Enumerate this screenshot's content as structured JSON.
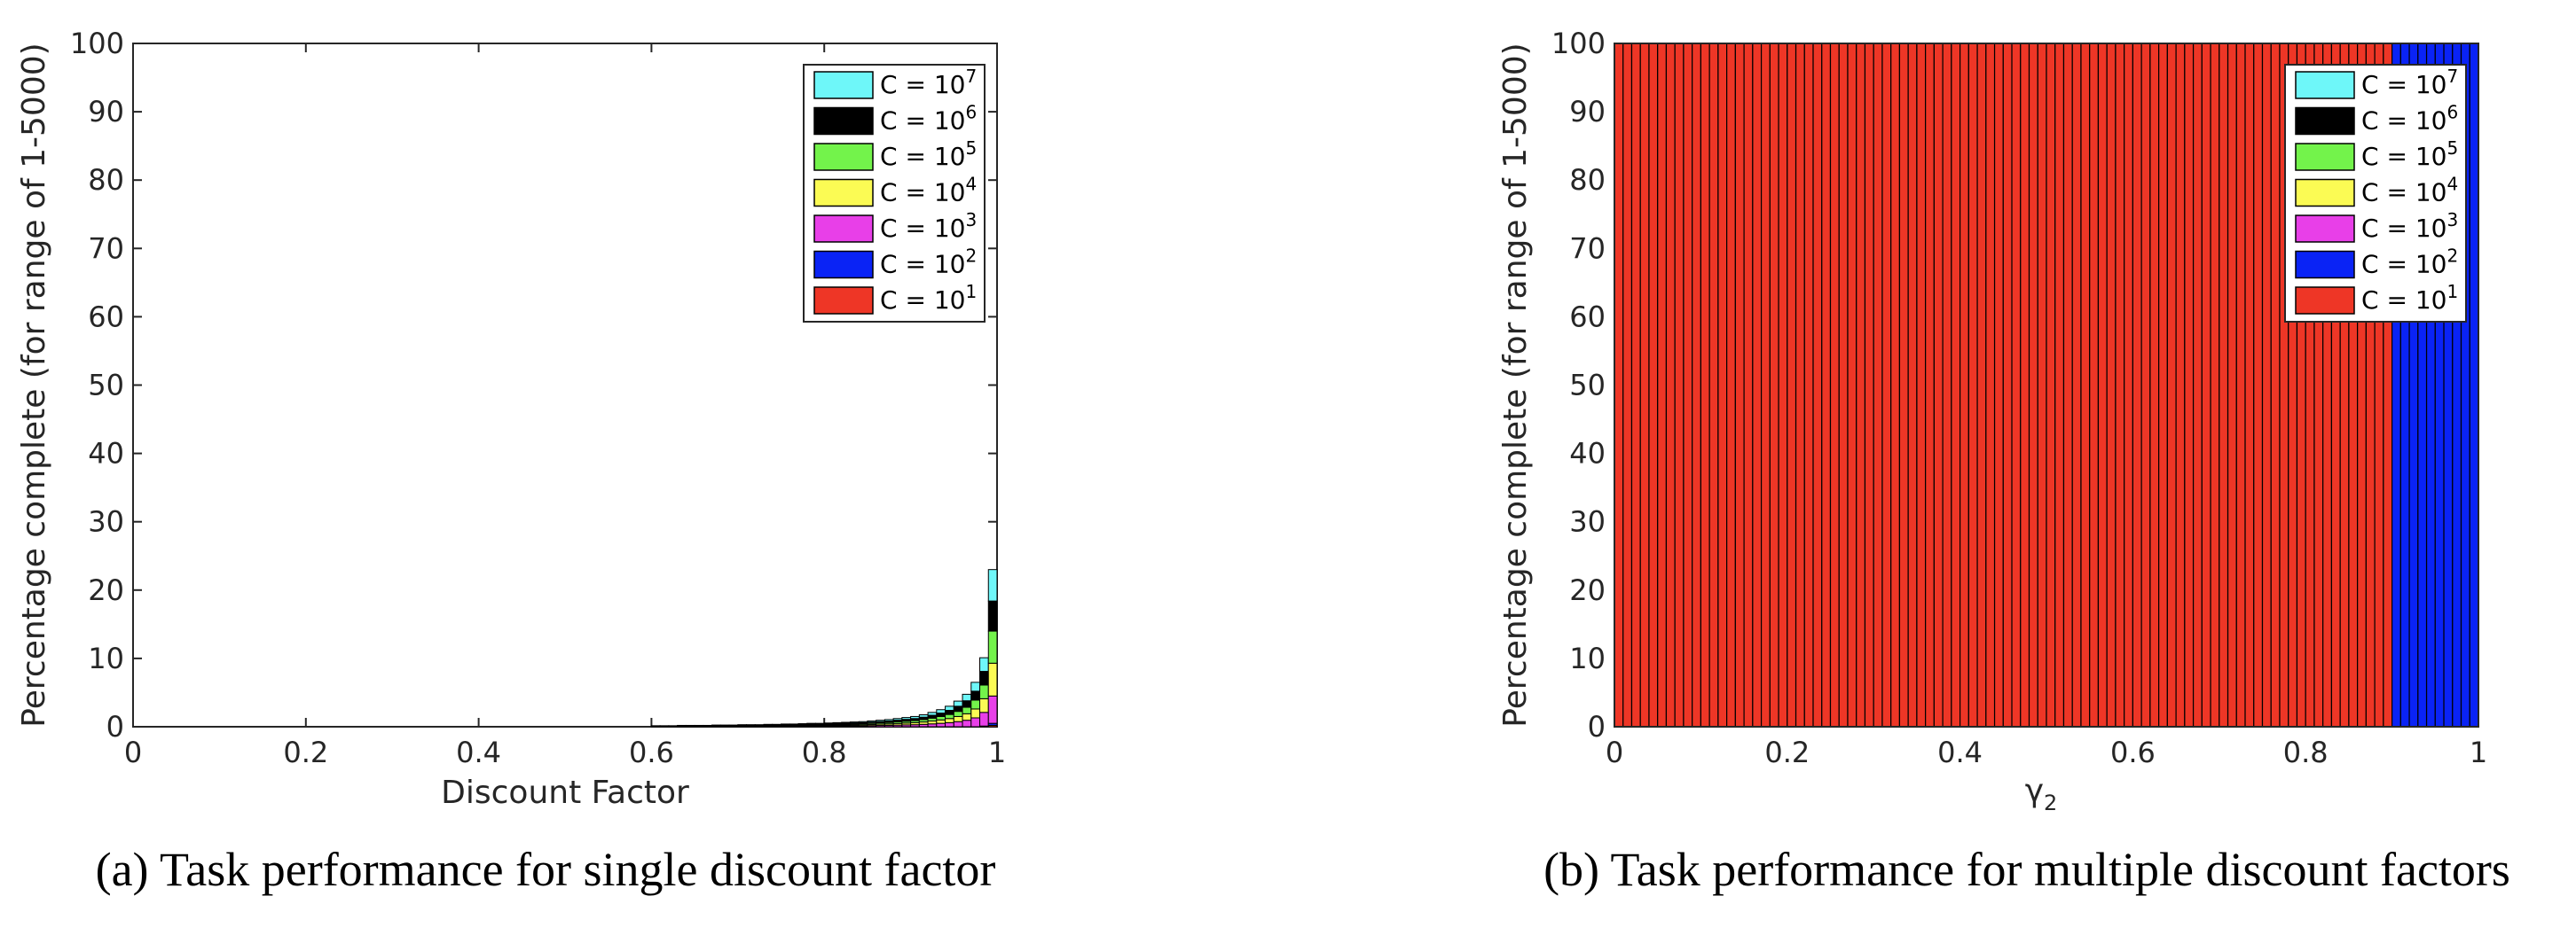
{
  "chart_data": [
    {
      "type": "bar",
      "stacked": true,
      "caption": "(a) Task performance for single discount factor",
      "xlabel": "Discount Factor",
      "ylabel": "Percentage complete (for range of 1-5000)",
      "xlim": [
        0,
        1
      ],
      "ylim": [
        0,
        100
      ],
      "xticks": [
        "0",
        "0.2",
        "0.4",
        "0.6",
        "0.8",
        "1"
      ],
      "yticks": [
        "0",
        "10",
        "20",
        "30",
        "40",
        "50",
        "60",
        "70",
        "80",
        "90",
        "100"
      ],
      "legend_position": "top-right",
      "bar_width": 0.01,
      "x": [
        0.6,
        0.61,
        0.62,
        0.63,
        0.64,
        0.65,
        0.66,
        0.67,
        0.68,
        0.69,
        0.7,
        0.71,
        0.72,
        0.73,
        0.74,
        0.75,
        0.76,
        0.77,
        0.78,
        0.79,
        0.8,
        0.81,
        0.82,
        0.83,
        0.84,
        0.85,
        0.86,
        0.87,
        0.88,
        0.89,
        0.9,
        0.91,
        0.92,
        0.93,
        0.94,
        0.95,
        0.96,
        0.97,
        0.98,
        0.99
      ],
      "series": [
        {
          "name": "C = 10^1",
          "legend": "C = 10",
          "sup": "1",
          "color": "#ee3626",
          "values": [
            0,
            0,
            0,
            0,
            0,
            0,
            0,
            0,
            0,
            0,
            0,
            0,
            0,
            0,
            0,
            0,
            0,
            0,
            0,
            0,
            0,
            0,
            0,
            0,
            0,
            0,
            0,
            0,
            0,
            0,
            0,
            0,
            0,
            0,
            0,
            0,
            0,
            0,
            0,
            0.2
          ]
        },
        {
          "name": "C = 10^2",
          "legend": "C = 10",
          "sup": "2",
          "color": "#0a23f5",
          "values": [
            0,
            0,
            0,
            0,
            0,
            0,
            0,
            0,
            0,
            0,
            0,
            0,
            0,
            0,
            0,
            0,
            0,
            0,
            0,
            0,
            0,
            0,
            0,
            0,
            0,
            0,
            0,
            0,
            0,
            0,
            0,
            0,
            0,
            0,
            0,
            0,
            0,
            0,
            0.1,
            0.3
          ]
        },
        {
          "name": "C = 10^3",
          "legend": "C = 10",
          "sup": "3",
          "color": "#e83fe8",
          "values": [
            0.03,
            0.03,
            0.03,
            0.04,
            0.04,
            0.04,
            0.04,
            0.05,
            0.05,
            0.05,
            0.06,
            0.06,
            0.06,
            0.07,
            0.07,
            0.08,
            0.08,
            0.09,
            0.1,
            0.1,
            0.11,
            0.12,
            0.13,
            0.14,
            0.15,
            0.17,
            0.19,
            0.21,
            0.24,
            0.27,
            0.3,
            0.35,
            0.42,
            0.5,
            0.6,
            0.75,
            0.95,
            1.3,
            2.0,
            4.0
          ]
        },
        {
          "name": "C = 10^4",
          "legend": "C = 10",
          "sup": "4",
          "color": "#fbfb54",
          "values": [
            0.03,
            0.03,
            0.03,
            0.04,
            0.04,
            0.04,
            0.04,
            0.05,
            0.05,
            0.05,
            0.06,
            0.06,
            0.06,
            0.07,
            0.07,
            0.08,
            0.08,
            0.09,
            0.1,
            0.1,
            0.11,
            0.12,
            0.13,
            0.14,
            0.15,
            0.17,
            0.19,
            0.21,
            0.24,
            0.27,
            0.3,
            0.35,
            0.42,
            0.5,
            0.6,
            0.75,
            0.95,
            1.3,
            2.0,
            4.8
          ]
        },
        {
          "name": "C = 10^5",
          "legend": "C = 10",
          "sup": "5",
          "color": "#73f34b",
          "values": [
            0.03,
            0.03,
            0.03,
            0.04,
            0.04,
            0.04,
            0.04,
            0.05,
            0.05,
            0.05,
            0.06,
            0.06,
            0.06,
            0.07,
            0.07,
            0.08,
            0.08,
            0.09,
            0.1,
            0.1,
            0.11,
            0.12,
            0.13,
            0.14,
            0.15,
            0.17,
            0.19,
            0.21,
            0.24,
            0.27,
            0.3,
            0.35,
            0.42,
            0.5,
            0.6,
            0.75,
            0.95,
            1.3,
            2.0,
            4.7
          ]
        },
        {
          "name": "C = 10^6",
          "legend": "C = 10",
          "sup": "6",
          "color": "#000000",
          "values": [
            0.03,
            0.03,
            0.03,
            0.04,
            0.04,
            0.04,
            0.04,
            0.05,
            0.05,
            0.05,
            0.06,
            0.06,
            0.06,
            0.07,
            0.07,
            0.08,
            0.08,
            0.09,
            0.1,
            0.1,
            0.11,
            0.12,
            0.13,
            0.14,
            0.15,
            0.17,
            0.19,
            0.21,
            0.24,
            0.27,
            0.3,
            0.35,
            0.42,
            0.5,
            0.6,
            0.75,
            0.95,
            1.3,
            2.0,
            4.4
          ]
        },
        {
          "name": "C = 10^7",
          "legend": "C = 10",
          "sup": "7",
          "color": "#6ef7f9",
          "values": [
            0.03,
            0.03,
            0.03,
            0.04,
            0.04,
            0.04,
            0.04,
            0.05,
            0.05,
            0.05,
            0.06,
            0.06,
            0.06,
            0.07,
            0.07,
            0.08,
            0.08,
            0.09,
            0.1,
            0.1,
            0.11,
            0.12,
            0.13,
            0.14,
            0.15,
            0.17,
            0.19,
            0.21,
            0.24,
            0.27,
            0.3,
            0.35,
            0.42,
            0.5,
            0.6,
            0.75,
            0.95,
            1.3,
            2.0,
            4.6
          ]
        }
      ]
    },
    {
      "type": "bar",
      "stacked": true,
      "caption": "(b) Task performance for multiple discount factors",
      "xlabel": "γ",
      "xlabel_sub": "2",
      "ylabel": "Percentage complete (for range of 1-5000)",
      "xlim": [
        0,
        1
      ],
      "ylim": [
        0,
        100
      ],
      "xticks": [
        "0",
        "0.2",
        "0.4",
        "0.6",
        "0.8",
        "1"
      ],
      "yticks": [
        "0",
        "10",
        "20",
        "30",
        "40",
        "50",
        "60",
        "70",
        "80",
        "90",
        "100"
      ],
      "legend_position": "top-right",
      "bar_width": 0.01,
      "bar_count": 100,
      "note_values": "each bar totals 100: red (C = 10^1) for γ2 < 0.9, blue (C = 10^2) for γ2 ≥ 0.9",
      "segments": [
        {
          "series": "C = 10^1",
          "color": "#ee3626",
          "x_from": 0.0,
          "x_to": 0.9,
          "value": 100
        },
        {
          "series": "C = 10^2",
          "color": "#0a23f5",
          "x_from": 0.9,
          "x_to": 1.0,
          "value": 100
        }
      ],
      "legend": [
        {
          "legend": "C = 10",
          "sup": "7",
          "color": "#6ef7f9"
        },
        {
          "legend": "C = 10",
          "sup": "6",
          "color": "#000000"
        },
        {
          "legend": "C = 10",
          "sup": "5",
          "color": "#73f34b"
        },
        {
          "legend": "C = 10",
          "sup": "4",
          "color": "#fbfb54"
        },
        {
          "legend": "C = 10",
          "sup": "3",
          "color": "#e83fe8"
        },
        {
          "legend": "C = 10",
          "sup": "2",
          "color": "#0a23f5"
        },
        {
          "legend": "C = 10",
          "sup": "1",
          "color": "#ee3626"
        }
      ]
    }
  ]
}
